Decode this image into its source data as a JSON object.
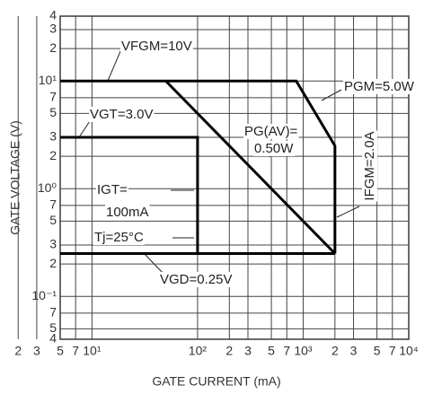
{
  "chart_data": {
    "type": "line",
    "xlabel": "GATE CURRENT (mA)",
    "ylabel": "GATE VOLTAGE (V)",
    "xlog": true,
    "ylog": true,
    "grid": true,
    "xlim": [
      5,
      10000
    ],
    "ylim": [
      0.04,
      40
    ],
    "xticks": [
      {
        "value": 10,
        "label": "10¹"
      },
      2,
      3,
      5,
      7,
      {
        "value": 100,
        "label": "10²"
      },
      {
        "value": 200,
        "label": "2"
      },
      {
        "value": 300,
        "label": "3"
      },
      {
        "value": 500,
        "label": "5"
      },
      {
        "value": 700,
        "label": "7"
      },
      {
        "value": 1000,
        "label": "10³"
      },
      {
        "value": 2000,
        "label": "2"
      },
      {
        "value": 3000,
        "label": "3"
      },
      {
        "value": 5000,
        "label": "5"
      },
      {
        "value": 7000,
        "label": "7"
      },
      {
        "value": 10000,
        "label": "10⁴"
      }
    ],
    "yticks": [
      {
        "value": 0.04,
        "label": "4"
      },
      {
        "value": 0.05,
        "label": "5"
      },
      {
        "value": 0.07,
        "label": "7"
      },
      {
        "value": 0.1,
        "label": "10⁻¹"
      },
      {
        "value": 0.2,
        "label": "2"
      },
      {
        "value": 0.3,
        "label": "3"
      },
      {
        "value": 0.5,
        "label": "5"
      },
      {
        "value": 0.7,
        "label": "7"
      },
      {
        "value": 1,
        "label": "10⁰"
      },
      2,
      3,
      5,
      7,
      {
        "value": 10,
        "label": "10¹"
      },
      {
        "value": 20,
        "label": "2"
      },
      {
        "value": 30,
        "label": "3"
      },
      {
        "value": 40,
        "label": "4"
      }
    ],
    "series": [
      {
        "color": "#000000",
        "x": [
          5,
          860,
          2000,
          2000
        ],
        "values": [
          10,
          10,
          2.5,
          0.25
        ]
      },
      {
        "color": "#000000",
        "x": [
          5,
          100,
          100
        ],
        "values": [
          3,
          3,
          0.25
        ]
      },
      {
        "color": "#000000",
        "x": [
          5,
          2000
        ],
        "values": [
          0.25,
          0.25
        ]
      },
      {
        "color": "#000000",
        "x": [
          50,
          2000
        ],
        "values": [
          10,
          0.25
        ]
      }
    ],
    "annotations": [
      "VFGM=10V",
      "PGM=5.0W",
      "VGT=3.0V",
      "PG(AV)=",
      "0.50W",
      "IGT=",
      "100mA",
      "IFGM=2.0A",
      "Tj=25°C",
      "VGD=0.25V"
    ]
  }
}
